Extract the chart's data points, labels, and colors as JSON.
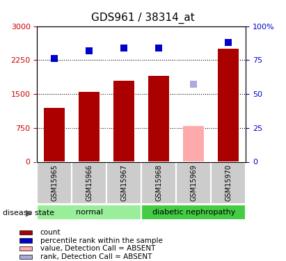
{
  "title": "GDS961 / 38314_at",
  "samples": [
    "GSM15965",
    "GSM15966",
    "GSM15967",
    "GSM15968",
    "GSM15969",
    "GSM15970"
  ],
  "counts": [
    1200,
    1550,
    1800,
    1900,
    800,
    2500
  ],
  "percentiles": [
    76,
    82,
    84,
    84,
    57,
    88
  ],
  "absent_flags": [
    false,
    false,
    false,
    false,
    true,
    false
  ],
  "bar_color_normal": "#aa0000",
  "bar_color_absent": "#ffaaaa",
  "dot_color_normal": "#0000cc",
  "dot_color_absent": "#aaaadd",
  "ylim_left": [
    0,
    3000
  ],
  "ylim_right": [
    0,
    100
  ],
  "yticks_left": [
    0,
    750,
    1500,
    2250,
    3000
  ],
  "yticks_right": [
    0,
    25,
    50,
    75,
    100
  ],
  "ytick_labels_left": [
    "0",
    "750",
    "1500",
    "2250",
    "3000"
  ],
  "ytick_labels_right": [
    "0",
    "25",
    "50",
    "75",
    "100%"
  ],
  "groups": [
    {
      "label": "normal",
      "samples": [
        "GSM15965",
        "GSM15966",
        "GSM15967"
      ],
      "color": "#99ee99"
    },
    {
      "label": "diabetic nephropathy",
      "samples": [
        "GSM15968",
        "GSM15969",
        "GSM15970"
      ],
      "color": "#44cc44"
    }
  ],
  "group_label": "disease state",
  "legend_items": [
    {
      "color": "#aa0000",
      "style": "rect",
      "label": "count"
    },
    {
      "color": "#0000cc",
      "style": "rect",
      "label": "percentile rank within the sample"
    },
    {
      "color": "#ffaaaa",
      "style": "rect",
      "label": "value, Detection Call = ABSENT"
    },
    {
      "color": "#aaaadd",
      "style": "rect",
      "label": "rank, Detection Call = ABSENT"
    }
  ],
  "dot_size": 60,
  "bar_width": 0.6,
  "fig_width": 4.11,
  "fig_height": 3.75,
  "dpi": 100,
  "plot_bg": "#e8e8e8",
  "sample_box_bg": "#cccccc"
}
